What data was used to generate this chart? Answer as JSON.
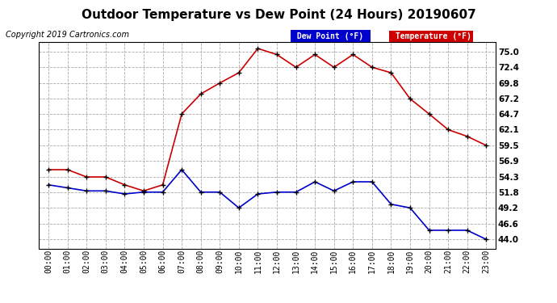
{
  "title": "Outdoor Temperature vs Dew Point (24 Hours) 20190607",
  "copyright": "Copyright 2019 Cartronics.com",
  "background_color": "#ffffff",
  "plot_background": "#ffffff",
  "grid_color": "#aaaaaa",
  "hours": [
    "00:00",
    "01:00",
    "02:00",
    "03:00",
    "04:00",
    "05:00",
    "06:00",
    "07:00",
    "08:00",
    "09:00",
    "10:00",
    "11:00",
    "12:00",
    "13:00",
    "14:00",
    "15:00",
    "16:00",
    "17:00",
    "18:00",
    "19:00",
    "20:00",
    "21:00",
    "22:00",
    "23:00"
  ],
  "temperature": [
    55.5,
    55.5,
    54.3,
    54.3,
    53.0,
    52.0,
    53.0,
    64.7,
    68.0,
    69.8,
    71.5,
    75.5,
    74.5,
    72.4,
    74.5,
    72.4,
    74.5,
    72.4,
    71.5,
    67.2,
    64.7,
    62.1,
    61.0,
    59.5
  ],
  "dew_point": [
    53.0,
    52.5,
    52.0,
    52.0,
    51.5,
    51.8,
    51.8,
    55.5,
    51.8,
    51.8,
    49.2,
    51.5,
    51.8,
    51.8,
    53.5,
    52.0,
    53.5,
    53.5,
    49.8,
    49.2,
    45.5,
    45.5,
    45.5,
    44.0
  ],
  "temp_color": "#cc0000",
  "dew_color": "#0000cc",
  "marker_color": "#000000",
  "yticks": [
    44.0,
    46.6,
    49.2,
    51.8,
    54.3,
    56.9,
    59.5,
    62.1,
    64.7,
    67.2,
    69.8,
    72.4,
    75.0
  ],
  "ylim": [
    42.5,
    76.5
  ],
  "legend_dew_bg": "#0000cc",
  "legend_temp_bg": "#cc0000",
  "legend_text_color": "#ffffff",
  "title_fontsize": 11,
  "copyright_fontsize": 7,
  "tick_fontsize": 7,
  "ytick_fontsize": 7.5
}
